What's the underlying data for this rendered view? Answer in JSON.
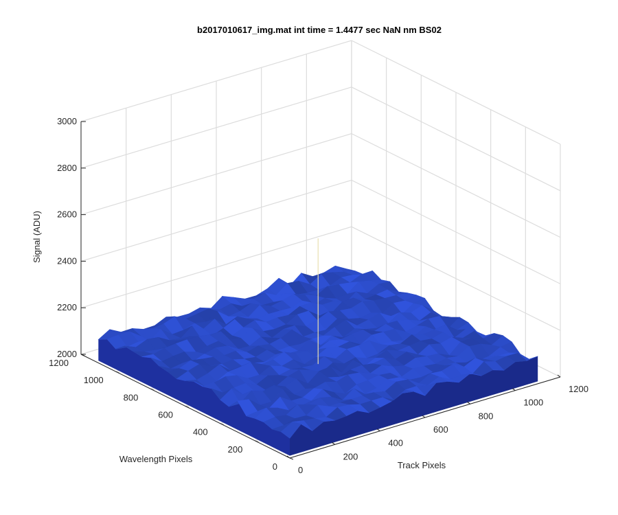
{
  "chart_data": {
    "type": "surface",
    "title": "b2017010617_img.mat int time = 1.4477 sec  NaN nm BS02",
    "xlabel": "Track Pixels",
    "ylabel": "Wavelength Pixels",
    "zlabel": "Signal (ADU)",
    "xlim": [
      0,
      1200
    ],
    "ylim": [
      0,
      1200
    ],
    "zlim": [
      2000,
      3000
    ],
    "x_ticks": [
      "0",
      "200",
      "400",
      "600",
      "800",
      "1000",
      "1200"
    ],
    "y_ticks": [
      "0",
      "200",
      "400",
      "600",
      "800",
      "1000",
      "1200"
    ],
    "z_ticks": [
      "2000",
      "2200",
      "2400",
      "2600",
      "2800",
      "3000"
    ],
    "surface": {
      "x_extent": [
        0,
        1100
      ],
      "y_extent": [
        0,
        1100
      ],
      "base_level": 2110,
      "noise_amplitude": 25,
      "color": "#2f52d8",
      "edge_color": "#1a2a8a"
    },
    "spike": {
      "x": 550,
      "y": 550,
      "z": 2580
    },
    "grid": true
  }
}
